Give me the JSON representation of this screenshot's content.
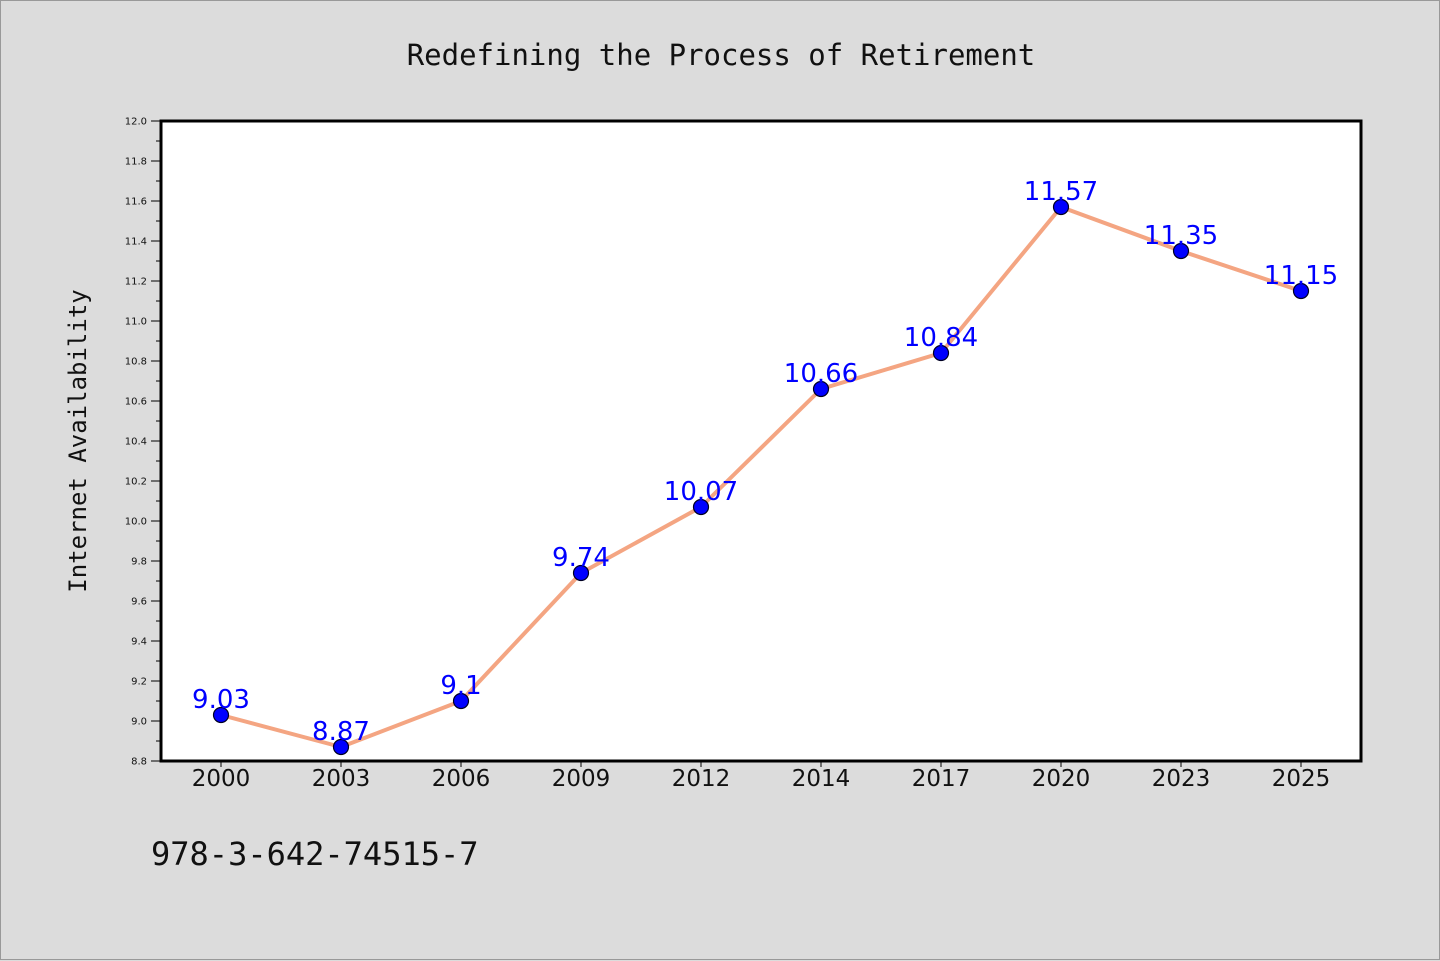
{
  "chart_data": {
    "type": "line",
    "title": "Redefining the Process of Retirement",
    "xlabel": "",
    "ylabel": "Internet Availability",
    "categories": [
      "2000",
      "2003",
      "2006",
      "2009",
      "2012",
      "2014",
      "2017",
      "2020",
      "2023",
      "2025"
    ],
    "series": [
      {
        "values": [
          9.03,
          8.87,
          9.1,
          9.74,
          10.07,
          10.66,
          10.84,
          11.57,
          11.35,
          11.15
        ],
        "labels": [
          "9.03",
          "8.87",
          "9.1",
          "9.74",
          "10.07",
          "10.66",
          "10.84",
          "11.57",
          "11.35",
          "11.15"
        ],
        "line_color": "#f4a582",
        "marker_color": "#0000ff"
      }
    ],
    "ylim": [
      8.8,
      12.0
    ],
    "yticks": [
      "8.8",
      "9.0",
      "9.2",
      "9.4",
      "9.6",
      "9.8",
      "10.0",
      "10.2",
      "10.4",
      "10.6",
      "10.8",
      "11.0",
      "11.2",
      "11.4",
      "11.6",
      "11.8",
      "12.0"
    ],
    "grid": false,
    "legend": "none"
  },
  "footnote": "978-3-642-74515-7"
}
